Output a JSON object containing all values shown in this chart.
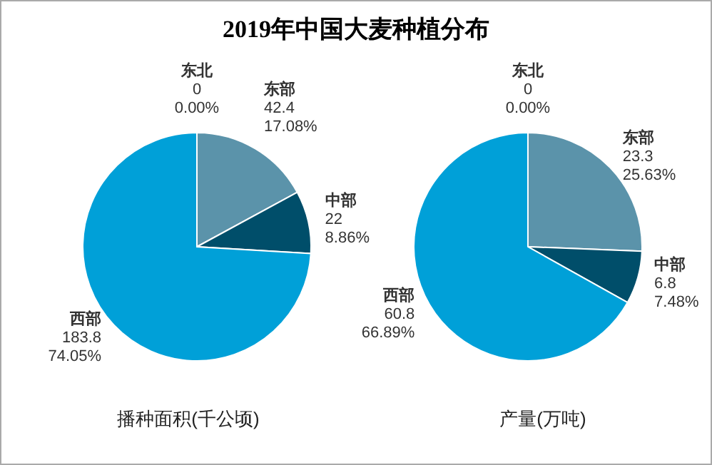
{
  "chart_data": [
    {
      "type": "pie",
      "title": "2019年中国大麦种植分布",
      "xlabel": "播种面积(千公顷)",
      "categories": [
        "东北",
        "东部",
        "中部",
        "西部"
      ],
      "values": [
        0,
        17.08,
        8.86,
        74.05
      ],
      "colors": [
        "#7fb3cc",
        "#5b93aa",
        "#004e6a",
        "#00a0d8"
      ],
      "value_labels": [
        "0\n0.00%",
        "42.4\n17.08%",
        "22\n8.86%",
        "183.8\n74.05%"
      ]
    },
    {
      "type": "pie",
      "xlabel": "产量(万吨)",
      "categories": [
        "东北",
        "东部",
        "中部",
        "西部"
      ],
      "values": [
        0,
        25.63,
        7.48,
        66.89
      ],
      "colors": [
        "#7fb3cc",
        "#5b93aa",
        "#004e6a",
        "#00a0d8"
      ],
      "value_labels": [
        "0\n0.00%",
        "23.3\n25.63%",
        "6.8\n7.48%",
        "60.8\n66.89%"
      ]
    }
  ]
}
